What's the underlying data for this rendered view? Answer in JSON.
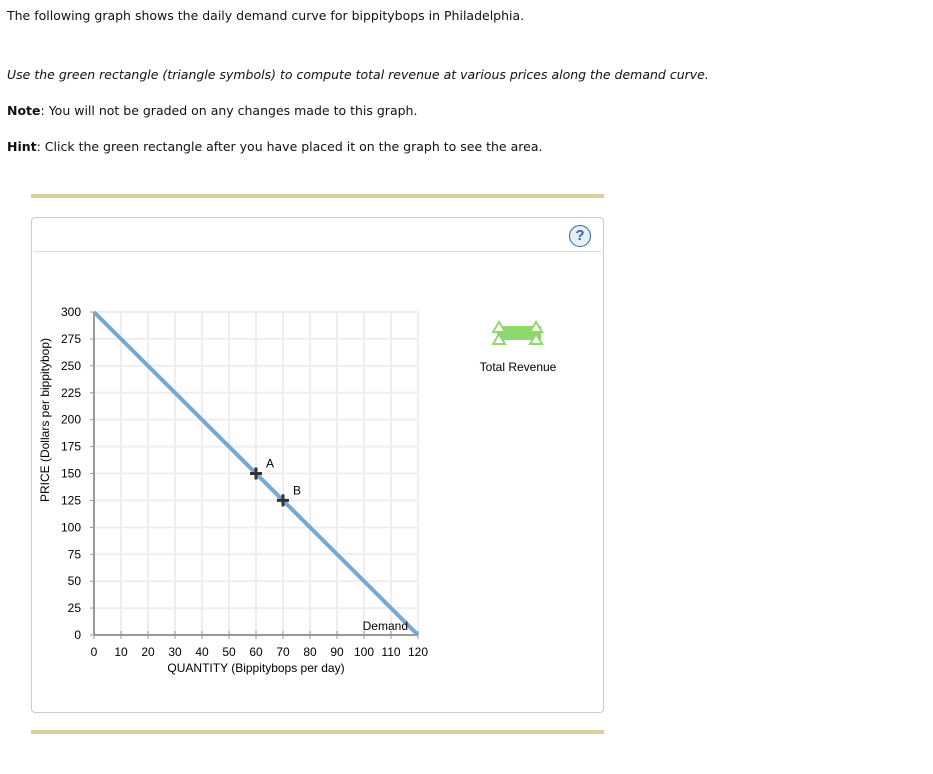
{
  "text": {
    "intro": "The following graph shows the daily demand curve for bippitybops in Philadelphia.",
    "instruction": "Use the green rectangle (triangle symbols) to compute total revenue at various prices along the demand curve.",
    "note_label": "Note",
    "note": ": You will not be graded on any changes made to this graph.",
    "hint_label": "Hint",
    "hint": ": Click the green rectangle after you have placed it on the graph to see the area."
  },
  "help_label": "?",
  "tool": {
    "label": "Total Revenue",
    "color": "#8ed96b"
  },
  "chart_data": {
    "type": "line",
    "xlabel": "QUANTITY (Bippitybops per day)",
    "ylabel": "PRICE (Dollars per bippitybop)",
    "xlim": [
      0,
      120
    ],
    "ylim": [
      0,
      300
    ],
    "xticks": [
      0,
      10,
      20,
      30,
      40,
      50,
      60,
      70,
      80,
      90,
      100,
      110,
      120
    ],
    "yticks": [
      0,
      25,
      50,
      75,
      100,
      125,
      150,
      175,
      200,
      225,
      250,
      275,
      300
    ],
    "grid": true,
    "series": [
      {
        "name": "Demand",
        "color": "#7aa6d4",
        "x": [
          0,
          120
        ],
        "y": [
          300,
          0
        ]
      }
    ],
    "points": [
      {
        "label": "A",
        "x": 60,
        "y": 150
      },
      {
        "label": "B",
        "x": 70,
        "y": 125
      }
    ]
  }
}
